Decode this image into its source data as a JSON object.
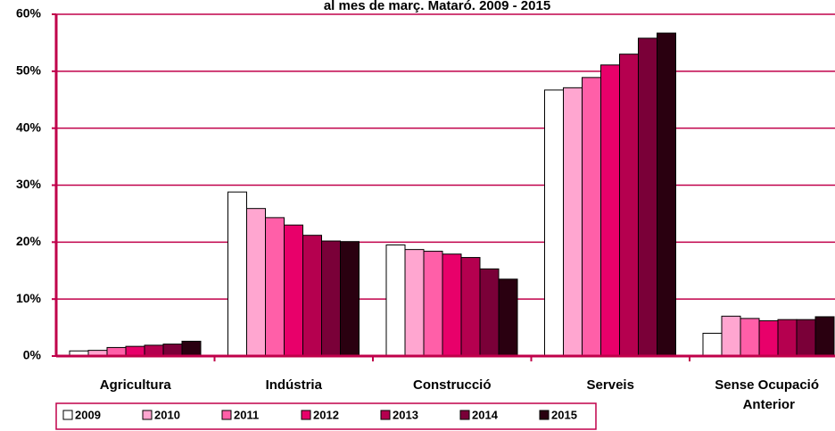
{
  "chart_data": {
    "type": "bar",
    "title": "al mes de març. Mataró. 2009 - 2015",
    "categories": [
      "Agricultura",
      "Indústria",
      "Construcció",
      "Serveis",
      "Sense Ocupació Anterior"
    ],
    "series": [
      {
        "name": "2009",
        "color": "#ffffff",
        "values": [
          0.9,
          28.8,
          19.5,
          46.7,
          4.0
        ]
      },
      {
        "name": "2010",
        "color": "#ffa6d0",
        "values": [
          1.0,
          25.9,
          18.7,
          47.1,
          7.0
        ]
      },
      {
        "name": "2011",
        "color": "#ff5fa8",
        "values": [
          1.5,
          24.3,
          18.4,
          48.9,
          6.6
        ]
      },
      {
        "name": "2012",
        "color": "#e8006a",
        "values": [
          1.7,
          23.0,
          17.9,
          51.1,
          6.2
        ]
      },
      {
        "name": "2013",
        "color": "#b5004f",
        "values": [
          1.9,
          21.2,
          17.3,
          53.0,
          6.4
        ]
      },
      {
        "name": "2014",
        "color": "#7a0038",
        "values": [
          2.1,
          20.2,
          15.3,
          55.8,
          6.4
        ]
      },
      {
        "name": "2015",
        "color": "#2a0010",
        "values": [
          2.6,
          20.1,
          13.5,
          56.7,
          6.9
        ]
      }
    ],
    "ylim": [
      0,
      60
    ],
    "yticks": [
      {
        "value": 0,
        "label": "0%"
      },
      {
        "value": 10,
        "label": "10%"
      },
      {
        "value": 20,
        "label": "20%"
      },
      {
        "value": 30,
        "label": "30%"
      },
      {
        "value": 40,
        "label": "40%"
      },
      {
        "value": 50,
        "label": "50%"
      },
      {
        "value": 60,
        "label": "60%"
      }
    ],
    "grid": true
  }
}
